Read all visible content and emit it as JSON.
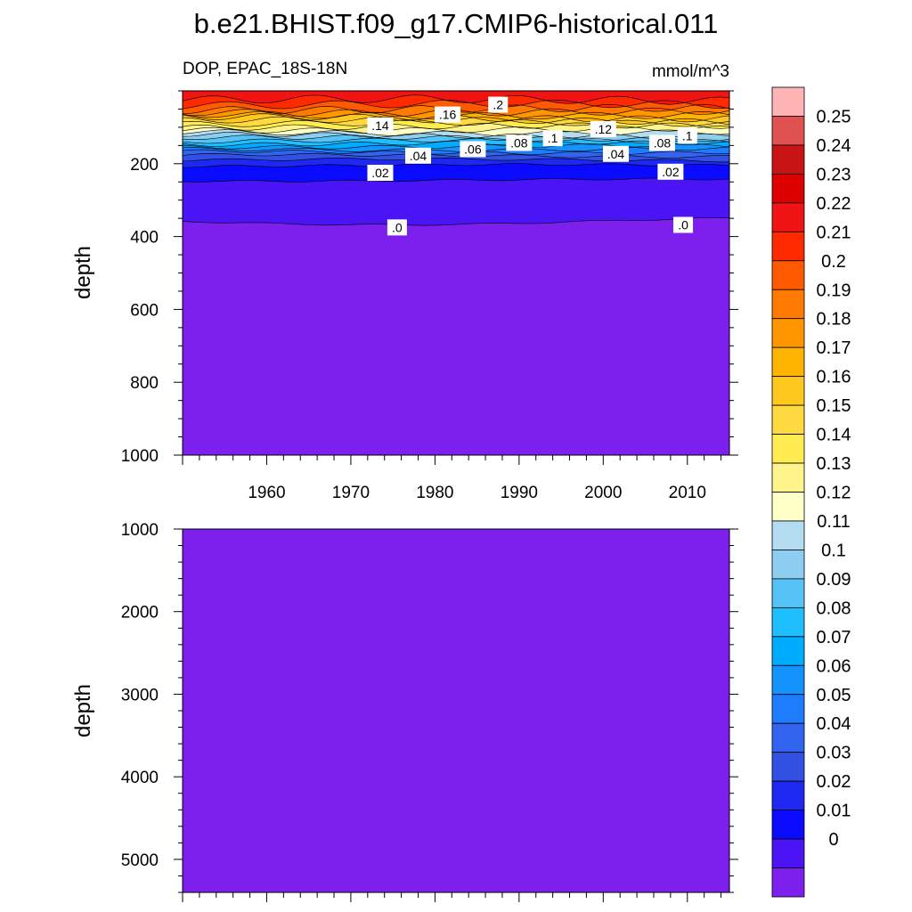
{
  "chart_data": [
    {
      "type": "heatmap",
      "panel": "upper",
      "title": "b.e21.BHIST.f09_g17.CMIP6-historical.011",
      "left_string": "DOP, EPAC_18S-18N",
      "right_string": "mmol/m^3",
      "xlabel": "",
      "ylabel": "depth",
      "xlim": [
        1950,
        2015
      ],
      "ylim": [
        1000,
        0
      ],
      "x_ticks": [
        1960,
        1970,
        1980,
        1990,
        2000,
        2010
      ],
      "x_tick_labels": [
        "1960",
        "1970",
        "1980",
        "1990",
        "2000",
        "2010"
      ],
      "y_ticks": [
        200,
        400,
        600,
        800,
        1000
      ],
      "y_tick_labels": [
        "200",
        "400",
        "600",
        "800",
        "1000"
      ],
      "contour_levels": [
        0,
        0.01,
        0.02,
        0.03,
        0.04,
        0.05,
        0.06,
        0.07,
        0.08,
        0.09,
        0.1,
        0.11,
        0.12,
        0.13,
        0.14,
        0.15,
        0.16,
        0.17,
        0.18,
        0.19,
        0.2,
        0.21,
        0.22
      ],
      "contour_depths": [
        358,
        245,
        205,
        190,
        178,
        168,
        160,
        152,
        145,
        138,
        130,
        122,
        114,
        106,
        98,
        90,
        82,
        74,
        66,
        58,
        50,
        38,
        25
      ],
      "contour_labels": [
        {
          "text": ".14",
          "x": 1973.5,
          "y": 95
        },
        {
          "text": ".16",
          "x": 1981.5,
          "y": 65
        },
        {
          "text": ".2",
          "x": 1987.5,
          "y": 38
        },
        {
          "text": ".08",
          "x": 1990,
          "y": 143
        },
        {
          "text": ".1",
          "x": 1994,
          "y": 130
        },
        {
          "text": ".12",
          "x": 2000,
          "y": 105
        },
        {
          "text": ".08",
          "x": 2007,
          "y": 143
        },
        {
          "text": ".1",
          "x": 2010,
          "y": 123
        },
        {
          "text": ".06",
          "x": 1984.5,
          "y": 160
        },
        {
          "text": ".04",
          "x": 1978,
          "y": 178
        },
        {
          "text": ".04",
          "x": 2001.5,
          "y": 173
        },
        {
          "text": ".02",
          "x": 1973.5,
          "y": 225
        },
        {
          "text": ".02",
          "x": 2008,
          "y": 222
        },
        {
          "text": ".0",
          "x": 1975.5,
          "y": 375
        },
        {
          "text": ".0",
          "x": 2009.5,
          "y": 368
        }
      ]
    },
    {
      "type": "heatmap",
      "panel": "lower",
      "xlabel": "",
      "ylabel": "depth",
      "xlim": [
        1950,
        2015
      ],
      "ylim": [
        5400,
        1000
      ],
      "y_ticks": [
        1000,
        2000,
        3000,
        4000,
        5000
      ],
      "y_tick_labels": [
        "1000",
        "2000",
        "3000",
        "4000",
        "5000"
      ],
      "fill_value": 0
    }
  ],
  "colorbar": {
    "labels": [
      "0.25",
      "0.24",
      "0.23",
      "0.22",
      "0.21",
      "0.2",
      "0.19",
      "0.18",
      "0.17",
      "0.16",
      "0.15",
      "0.14",
      "0.13",
      "0.12",
      "0.11",
      "0.1",
      "0.09",
      "0.08",
      "0.07",
      "0.06",
      "0.05",
      "0.04",
      "0.03",
      "0.02",
      "0.01",
      "0"
    ],
    "colors": [
      "#feb4b4",
      "#e05252",
      "#c81414",
      "#dc0000",
      "#f01414",
      "#ff2a00",
      "#ff5a00",
      "#ff7a00",
      "#ff9600",
      "#ffb400",
      "#ffc81e",
      "#ffd940",
      "#ffec50",
      "#fff38c",
      "#ffffc8",
      "#b4dcf0",
      "#8ccdf0",
      "#55c3f5",
      "#1ebeff",
      "#00acff",
      "#1493ff",
      "#1e7dff",
      "#3264f0",
      "#3250e1",
      "#1e28f0",
      "#0a0aff",
      "#4b14f5",
      "#7d20ee"
    ]
  }
}
